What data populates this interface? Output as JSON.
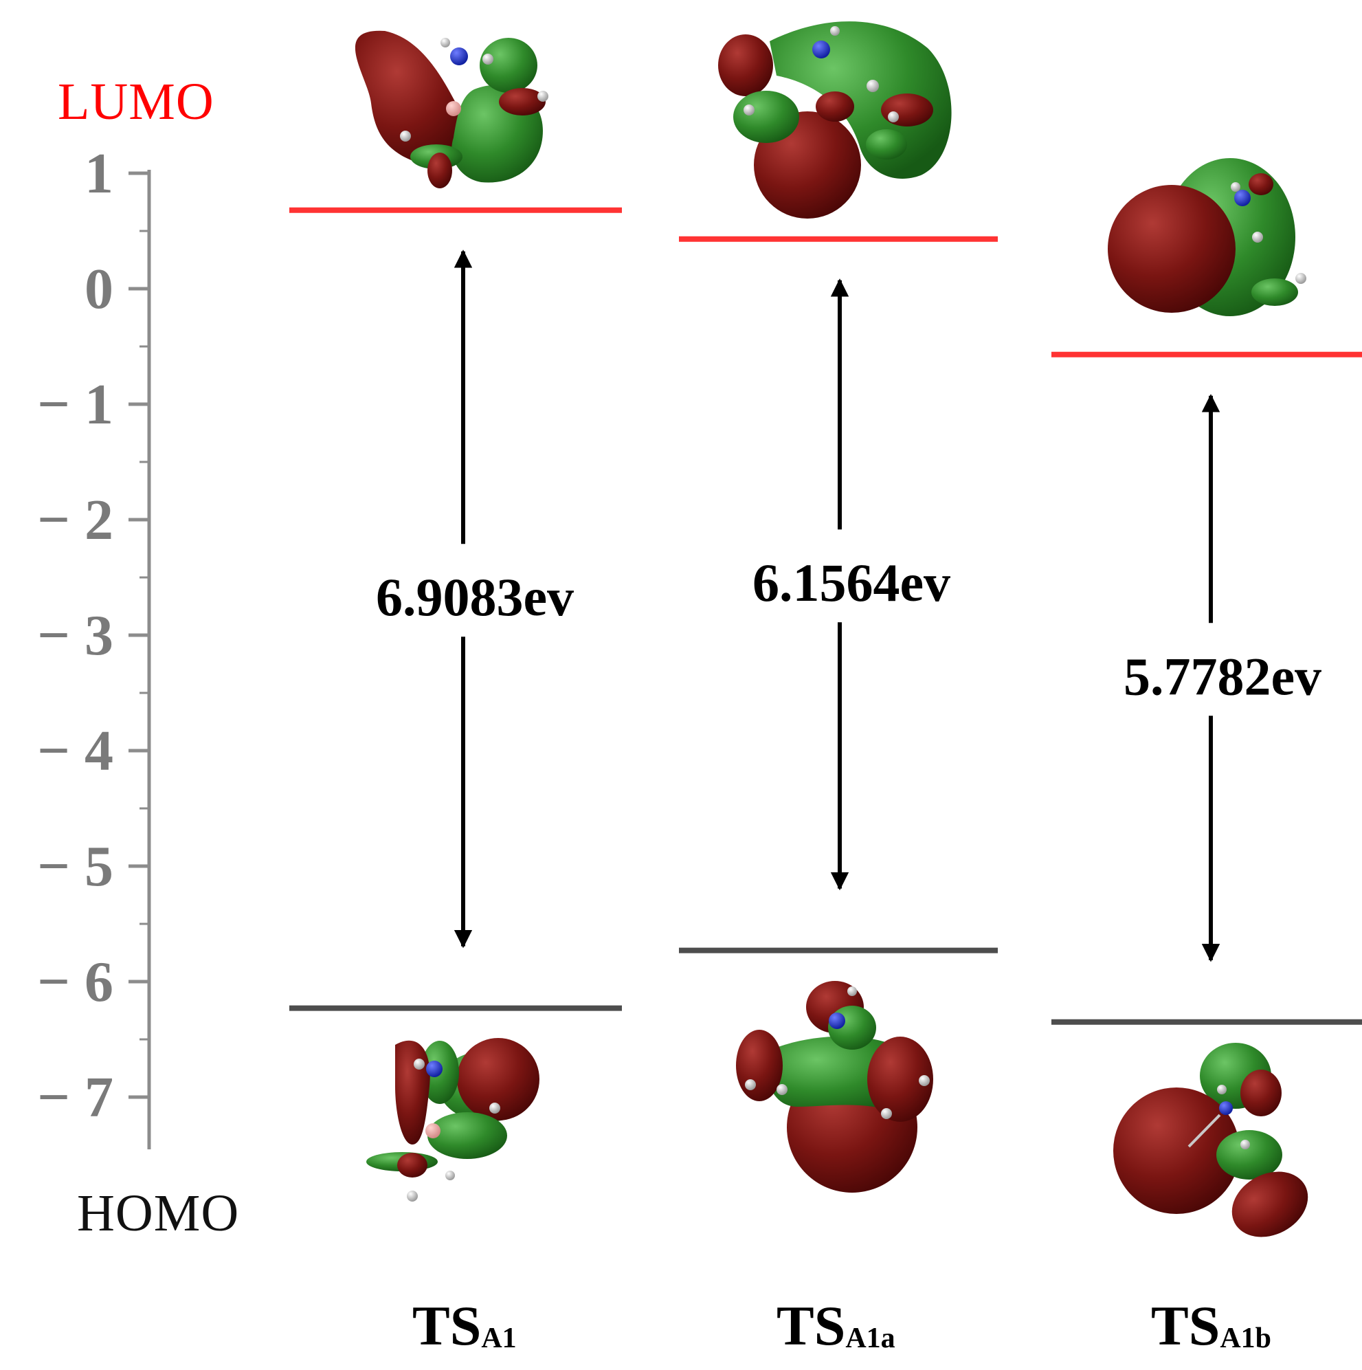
{
  "labels": {
    "lumo": "LUMO",
    "homo": "HOMO"
  },
  "axis": {
    "tick_labels": [
      "1",
      "0",
      "− 1",
      "− 2",
      "− 3",
      "− 4",
      "− 5",
      "− 6",
      "− 7"
    ]
  },
  "structures": [
    {
      "main": "TS",
      "sub": "A1",
      "lumo_ev": 0.68,
      "homo_ev": -6.23,
      "gap_label": "6.9083ev"
    },
    {
      "main": "TS",
      "sub": "A1a",
      "lumo_ev": 0.43,
      "homo_ev": -5.73,
      "gap_label": "6.1564ev"
    },
    {
      "main": "TS",
      "sub": "A1b",
      "lumo_ev": -0.57,
      "homo_ev": -6.35,
      "gap_label": "5.7782ev"
    }
  ],
  "colors": {
    "lumo_line": "#ff3333",
    "homo_line": "#4d4d4d",
    "axis": "#8c8c8c",
    "orbital_red": "#7a1512",
    "orbital_green": "#2f8a2a"
  }
}
